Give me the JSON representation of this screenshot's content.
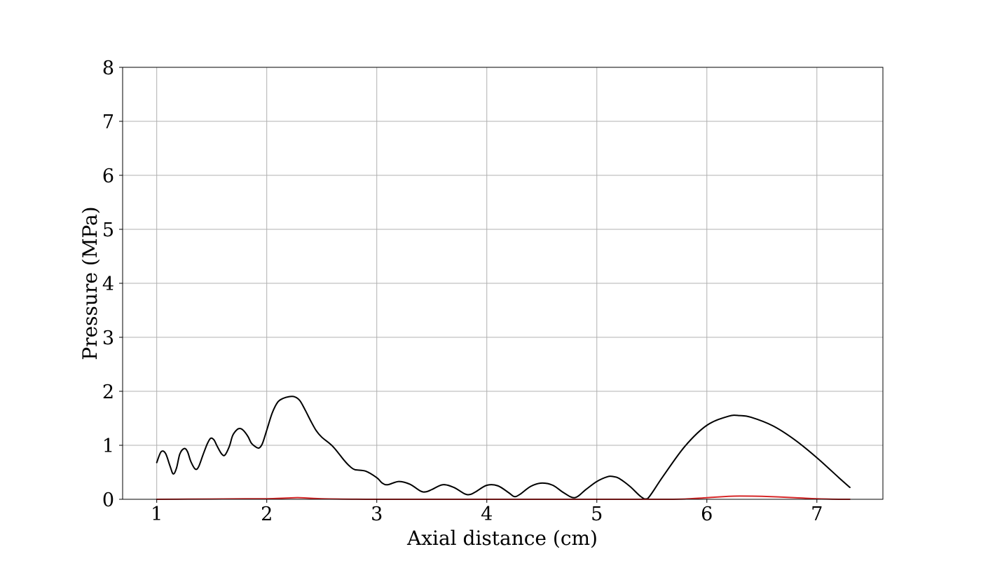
{
  "chart_data": {
    "type": "line",
    "title": "",
    "xlabel": "Axial distance (cm)",
    "ylabel": "Pressure (MPa)",
    "xlim": [
      0.69,
      7.6
    ],
    "ylim": [
      0,
      8
    ],
    "x_ticks": [
      "1",
      "2",
      "3",
      "4",
      "5",
      "6",
      "7"
    ],
    "y_ticks": [
      "0",
      "1",
      "2",
      "3",
      "4",
      "5",
      "6",
      "7",
      "8"
    ],
    "grid": true,
    "legend": "none",
    "series": [
      {
        "color": "#000000",
        "x": [
          1.0,
          1.04,
          1.08,
          1.12,
          1.15,
          1.18,
          1.21,
          1.25,
          1.28,
          1.31,
          1.35,
          1.38,
          1.42,
          1.46,
          1.49,
          1.52,
          1.55,
          1.59,
          1.62,
          1.66,
          1.69,
          1.73,
          1.76,
          1.79,
          1.83,
          1.86,
          1.9,
          1.93,
          1.96,
          2.0,
          2.05,
          2.1,
          2.15,
          2.2,
          2.25,
          2.3,
          2.35,
          2.4,
          2.45,
          2.5,
          2.6,
          2.7,
          2.75,
          2.8,
          2.9,
          3.0,
          3.05,
          3.1,
          3.2,
          3.3,
          3.4,
          3.45,
          3.5,
          3.6,
          3.7,
          3.8,
          3.85,
          3.9,
          4.0,
          4.1,
          4.2,
          4.25,
          4.3,
          4.4,
          4.5,
          4.6,
          4.7,
          4.8,
          4.9,
          5.0,
          5.1,
          5.15,
          5.2,
          5.3,
          5.4,
          5.46,
          5.6,
          5.8,
          6.0,
          6.2,
          6.3,
          6.4,
          6.6,
          6.8,
          7.0,
          7.2,
          7.3
        ],
        "y": [
          0.68,
          0.88,
          0.85,
          0.62,
          0.47,
          0.58,
          0.84,
          0.94,
          0.88,
          0.7,
          0.56,
          0.6,
          0.82,
          1.03,
          1.13,
          1.1,
          0.98,
          0.84,
          0.82,
          0.98,
          1.18,
          1.29,
          1.31,
          1.27,
          1.16,
          1.04,
          0.97,
          0.95,
          1.03,
          1.28,
          1.6,
          1.8,
          1.87,
          1.9,
          1.9,
          1.83,
          1.65,
          1.45,
          1.27,
          1.15,
          0.98,
          0.73,
          0.62,
          0.55,
          0.52,
          0.4,
          0.3,
          0.27,
          0.33,
          0.28,
          0.15,
          0.14,
          0.18,
          0.27,
          0.22,
          0.1,
          0.09,
          0.14,
          0.26,
          0.25,
          0.12,
          0.05,
          0.09,
          0.24,
          0.3,
          0.26,
          0.12,
          0.03,
          0.18,
          0.33,
          0.42,
          0.42,
          0.39,
          0.24,
          0.05,
          0.01,
          0.42,
          0.98,
          1.37,
          1.54,
          1.55,
          1.52,
          1.36,
          1.1,
          0.77,
          0.4,
          0.22
        ]
      },
      {
        "color": "#d62728",
        "x": [
          1.0,
          1.5,
          1.8,
          2.0,
          2.2,
          2.3,
          2.5,
          3.0,
          4.0,
          5.0,
          5.6,
          5.8,
          6.0,
          6.2,
          6.3,
          6.5,
          6.8,
          7.0,
          7.2,
          7.3
        ],
        "y": [
          0.0,
          0.005,
          0.01,
          0.01,
          0.025,
          0.03,
          0.01,
          0.0,
          0.0,
          0.0,
          0.0,
          0.005,
          0.03,
          0.055,
          0.06,
          0.055,
          0.03,
          0.01,
          0.0,
          0.0
        ]
      }
    ]
  }
}
